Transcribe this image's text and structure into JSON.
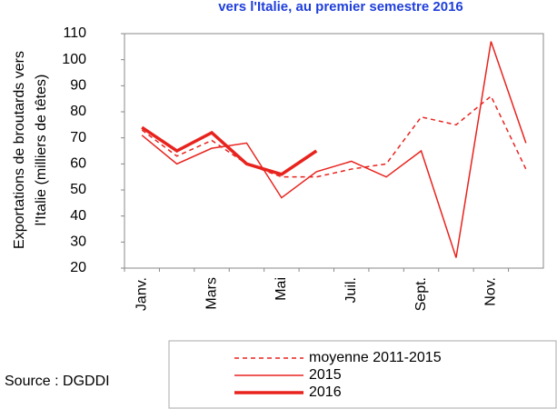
{
  "chart_data": {
    "type": "line",
    "title": "vers l'Italie, au premier semestre 2016",
    "ylabel_lines": [
      "Exportations de broutards vers",
      "l'Italie (milliers de têtes)"
    ],
    "source": "Source : DGDDI",
    "categories": [
      "Janv.",
      null,
      "Mars",
      null,
      "Mai",
      null,
      "Juil.",
      null,
      "Sept.",
      null,
      "Nov.",
      null
    ],
    "ylim": [
      20,
      110
    ],
    "yticks": [
      20,
      30,
      40,
      50,
      60,
      70,
      80,
      90,
      100,
      110
    ],
    "series": [
      {
        "name": "moyenne 2011-2015",
        "color": "#e8231e",
        "line_style": "dashed",
        "width": 1.5,
        "values": [
          73,
          63,
          69,
          60,
          55,
          55,
          58,
          60,
          78,
          75,
          86,
          58
        ]
      },
      {
        "name": "2015",
        "color": "#e8231e",
        "line_style": "solid",
        "width": 1.5,
        "values": [
          71,
          60,
          66,
          68,
          47,
          57,
          61,
          55,
          65,
          24,
          107,
          68
        ]
      },
      {
        "name": "2016",
        "color": "#e8231e",
        "line_style": "solid",
        "width": 3.5,
        "values": [
          74,
          65,
          72,
          60,
          56,
          65,
          null,
          null,
          null,
          null,
          null,
          null
        ]
      }
    ]
  }
}
